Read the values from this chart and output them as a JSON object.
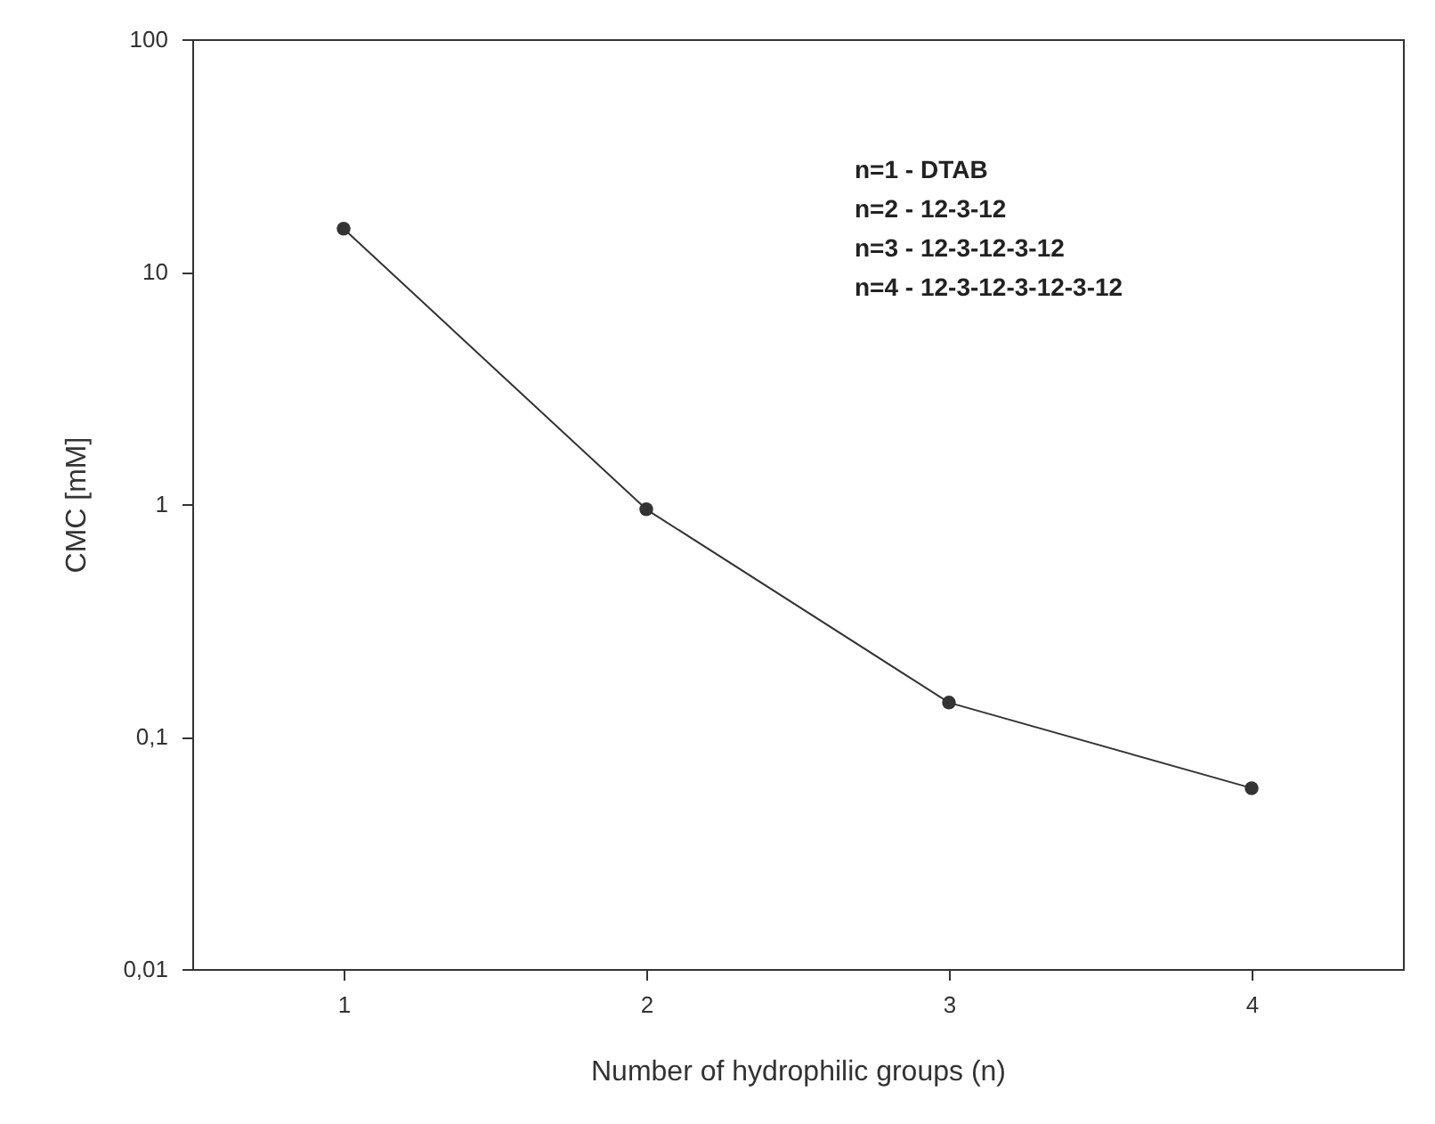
{
  "chart_data": {
    "type": "line",
    "xlabel": "Number of hydrophilic groups (n)",
    "ylabel": "CMC [mM]",
    "x": [
      1,
      2,
      3,
      4
    ],
    "series": [
      {
        "color": "#333333",
        "values": [
          15.3,
          0.95,
          0.14,
          0.06
        ]
      }
    ],
    "xlim": [
      0.5,
      4.5
    ],
    "xticks": [
      1,
      2,
      3,
      4
    ],
    "ylim": [
      0.01,
      100
    ],
    "yticks": [
      {
        "value": 0.01,
        "label": "0,01"
      },
      {
        "value": 0.1,
        "label": "0,1"
      },
      1,
      10,
      100
    ],
    "log": true,
    "grid": false,
    "marker": "circle",
    "line_style": "solid",
    "annotations": [
      "n=1 - DTAB",
      "n=2 - 12-3-12",
      "n=3 - 12-3-12-3-12",
      "n=4 - 12-3-12-3-12-3-12"
    ]
  }
}
